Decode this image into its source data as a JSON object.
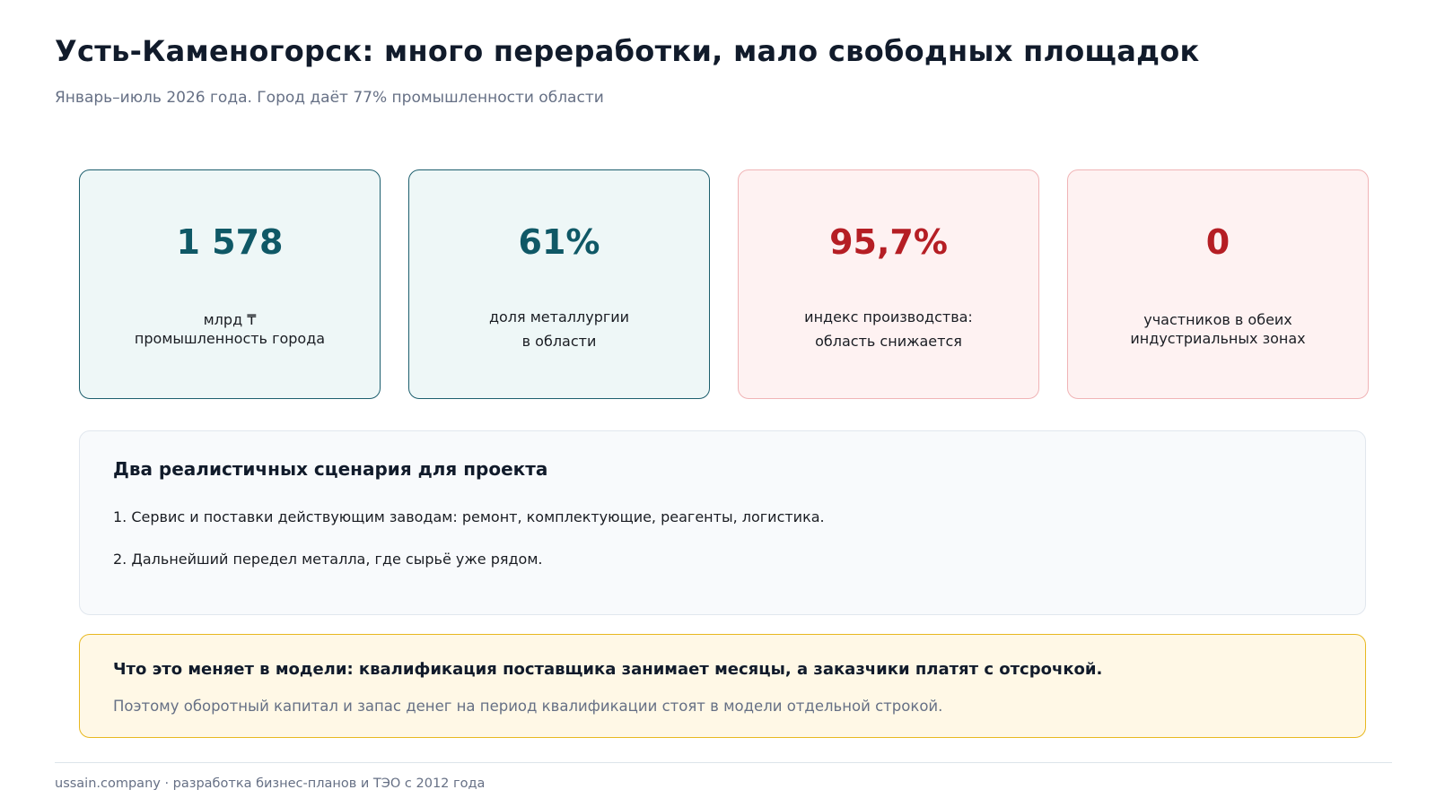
{
  "header": {
    "title": "Усть-Каменогорск: много переработки, мало свободных площадок",
    "subtitle": "Январь–июль 2026 года. Город даёт 77% промышленности области"
  },
  "stats": [
    {
      "value": "1 578",
      "label_lines": [
        "млрд ₸",
        "промышленность города"
      ],
      "tone": "teal"
    },
    {
      "value": "61%",
      "label_lines": [
        "доля металлургии",
        "в области"
      ],
      "tone": "teal"
    },
    {
      "value": "95,7%",
      "label_lines": [
        "индекс производства:",
        "область снижается"
      ],
      "tone": "red"
    },
    {
      "value": "0",
      "label_lines": [
        "участников в обеих",
        "индустриальных зонах"
      ],
      "tone": "red"
    }
  ],
  "colors": {
    "teal_value": "#0f5866",
    "red_value": "#b51e24",
    "note_border": "#e8b820"
  },
  "scenarios": {
    "title": "Два реалистичных сценария для проекта",
    "items": [
      "1. Сервис и поставки действующим заводам: ремонт, комплектующие, реагенты, логистика.",
      "2. Дальнейший передел металла, где сырьё уже рядом."
    ]
  },
  "note": {
    "title": "Что это меняет в модели: квалификация поставщика занимает месяцы, а заказчики платят с отсрочкой.",
    "text": "Поэтому оборотный капитал и запас денег на период квалификации стоят в модели отдельной строкой."
  },
  "footer": {
    "text": "ussain.company · разработка бизнес-планов и ТЭО с 2012 года"
  }
}
